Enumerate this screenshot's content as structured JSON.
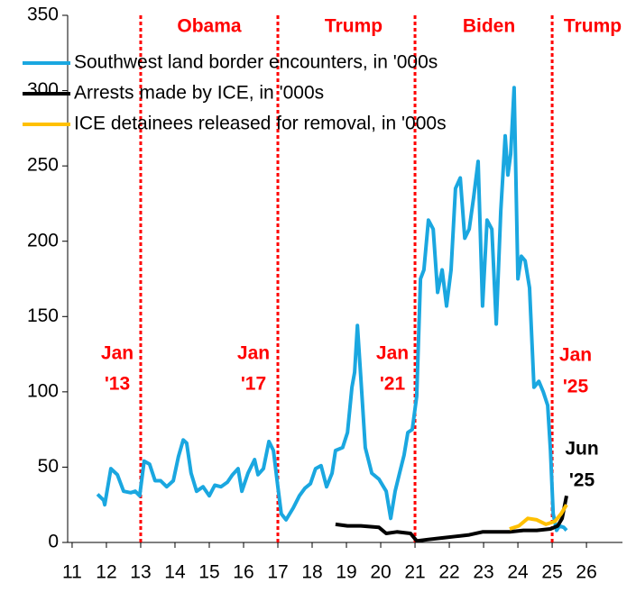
{
  "chart_data": {
    "type": "line",
    "xlim": [
      10.87,
      27.05
    ],
    "ylim": [
      0,
      350
    ],
    "xticks": [
      11,
      12,
      13,
      14,
      15,
      16,
      17,
      18,
      19,
      20,
      21,
      22,
      23,
      24,
      25,
      26
    ],
    "yticks": [
      0,
      50,
      100,
      150,
      200,
      250,
      300,
      350
    ],
    "grid": false,
    "legend": "top-left",
    "vlines": {
      "color": "#ff0000",
      "x": [
        13,
        17,
        21,
        25
      ]
    },
    "eras": [
      "Obama",
      "Trump",
      "Biden",
      "Trump"
    ],
    "annotations": [
      {
        "lines": [
          "Jan",
          "'13"
        ]
      },
      {
        "lines": [
          "Jan",
          "'17"
        ]
      },
      {
        "lines": [
          "Jan",
          "'21"
        ]
      },
      {
        "lines": [
          "Jan",
          "'25"
        ]
      },
      {
        "lines": [
          "Jun",
          "'25"
        ]
      }
    ],
    "series": [
      {
        "name": "Southwest land border encounters, in '000s",
        "color": "#1aa7e0",
        "x": [
          11.74,
          11.92,
          11.95,
          12.13,
          12.32,
          12.5,
          12.71,
          12.84,
          12.97,
          13.1,
          13.26,
          13.42,
          13.58,
          13.76,
          13.95,
          14.1,
          14.24,
          14.34,
          14.47,
          14.63,
          14.82,
          15.0,
          15.16,
          15.34,
          15.53,
          15.68,
          15.84,
          15.95,
          16.13,
          16.32,
          16.42,
          16.58,
          16.74,
          16.87,
          17.0,
          17.1,
          17.24,
          17.45,
          17.63,
          17.79,
          17.95,
          18.1,
          18.26,
          18.42,
          18.58,
          18.68,
          18.89,
          19.03,
          19.16,
          19.24,
          19.32,
          19.42,
          19.55,
          19.74,
          19.95,
          20.16,
          20.29,
          20.42,
          20.55,
          20.68,
          20.79,
          20.92,
          21.05,
          21.16,
          21.26,
          21.39,
          21.53,
          21.66,
          21.79,
          21.92,
          22.05,
          22.18,
          22.32,
          22.45,
          22.58,
          22.71,
          22.84,
          22.97,
          23.1,
          23.24,
          23.37,
          23.5,
          23.63,
          23.71,
          23.79,
          23.89,
          24.0,
          24.1,
          24.21,
          24.34,
          24.47,
          24.61,
          24.74,
          24.87,
          24.95,
          25.03,
          25.13,
          25.21,
          25.34,
          25.42
        ],
        "values": [
          32,
          28,
          25,
          49,
          45,
          34,
          33,
          34,
          31,
          54,
          52,
          41,
          41,
          37,
          41,
          57,
          68,
          66,
          46,
          34,
          37,
          31,
          38,
          37,
          40,
          45,
          49,
          34,
          46,
          55,
          45,
          49,
          67,
          61,
          37,
          19,
          15,
          23,
          31,
          36,
          39,
          49,
          51,
          37,
          46,
          61,
          63,
          73,
          103,
          113,
          144,
          109,
          63,
          46,
          42,
          34,
          16,
          34,
          46,
          58,
          73,
          75,
          97,
          175,
          181,
          214,
          208,
          166,
          181,
          157,
          181,
          235,
          242,
          202,
          208,
          229,
          253,
          157,
          214,
          208,
          145,
          220,
          270,
          244,
          258,
          302,
          175,
          190,
          187,
          169,
          103,
          107,
          100,
          91,
          61,
          19,
          8,
          11,
          10,
          8
        ]
      },
      {
        "name": "Arrests made by ICE, in '000s",
        "color": "#000000",
        "x": [
          18.68,
          19.03,
          19.42,
          19.95,
          20.16,
          20.47,
          20.87,
          21.05,
          21.39,
          21.79,
          22.18,
          22.58,
          22.97,
          23.37,
          23.76,
          24.16,
          24.55,
          24.95,
          25.16,
          25.29,
          25.42
        ],
        "values": [
          12,
          11,
          11,
          10,
          6,
          7,
          6,
          1,
          2,
          3,
          4,
          5,
          7,
          7,
          7,
          8,
          8,
          9,
          11,
          16,
          31
        ]
      },
      {
        "name": "ICE detainees released for removal, in '000s",
        "color": "#ffc000",
        "x": [
          23.76,
          24.03,
          24.29,
          24.55,
          24.82,
          25.08,
          25.26,
          25.42
        ],
        "values": [
          9,
          11,
          16,
          15,
          12,
          14,
          19,
          25
        ]
      }
    ]
  }
}
